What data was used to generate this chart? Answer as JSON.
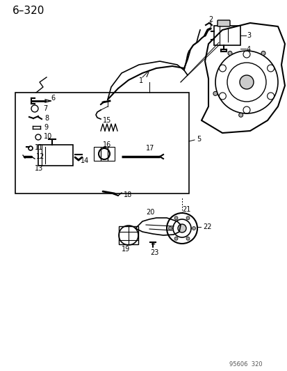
{
  "title": "6–320",
  "footer": "95606  320",
  "background_color": "#ffffff",
  "line_color": "#000000",
  "text_color": "#000000",
  "fig_width": 4.14,
  "fig_height": 5.33,
  "dpi": 100,
  "parts": {
    "top_assembly": {
      "label1": "1",
      "label2": "2",
      "label3": "3",
      "label4": "4"
    },
    "middle_assembly": {
      "labels": [
        "5",
        "6",
        "7",
        "8",
        "9",
        "10",
        "11",
        "12",
        "13",
        "14",
        "15",
        "16",
        "17",
        "18"
      ]
    },
    "bottom_assembly": {
      "labels": [
        "19",
        "20",
        "21",
        "22",
        "23"
      ]
    }
  }
}
